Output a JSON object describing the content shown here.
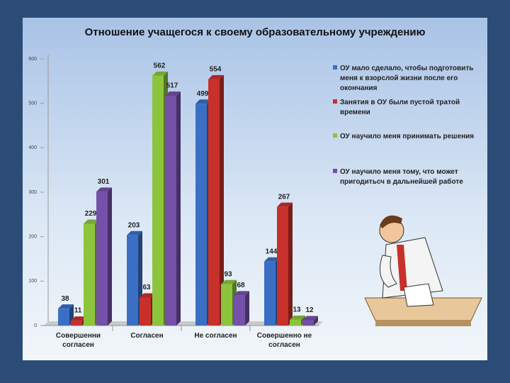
{
  "chart_data": {
    "type": "bar",
    "title": "Отношение учащегося к своему образовательному учреждению",
    "categories": [
      "Совершенни согласен",
      "Согласен",
      "Не согласен",
      "Совершенно не согласен"
    ],
    "series": [
      {
        "name": "ОУ мало сделало, чтобы подготовить меня к взорслой жизни после его окончания",
        "color": "#3a6fc4",
        "values": [
          38,
          203,
          499,
          144
        ]
      },
      {
        "name": "Занятия в ОУ были пустой тратой времени",
        "color": "#c8302c",
        "values": [
          11,
          63,
          554,
          267
        ]
      },
      {
        "name": "ОУ научило меня принимать решения",
        "color": "#8cc43c",
        "values": [
          229,
          562,
          93,
          13
        ]
      },
      {
        "name": "ОУ научило меня тому, что может пригодитьсч в дальнейшей работе",
        "color": "#7450a8",
        "values": [
          301,
          517,
          68,
          12
        ]
      }
    ],
    "ylim": [
      0,
      600
    ],
    "yticks": [
      0,
      100,
      200,
      300,
      400,
      500,
      600
    ],
    "grid": false,
    "legend": "right"
  }
}
